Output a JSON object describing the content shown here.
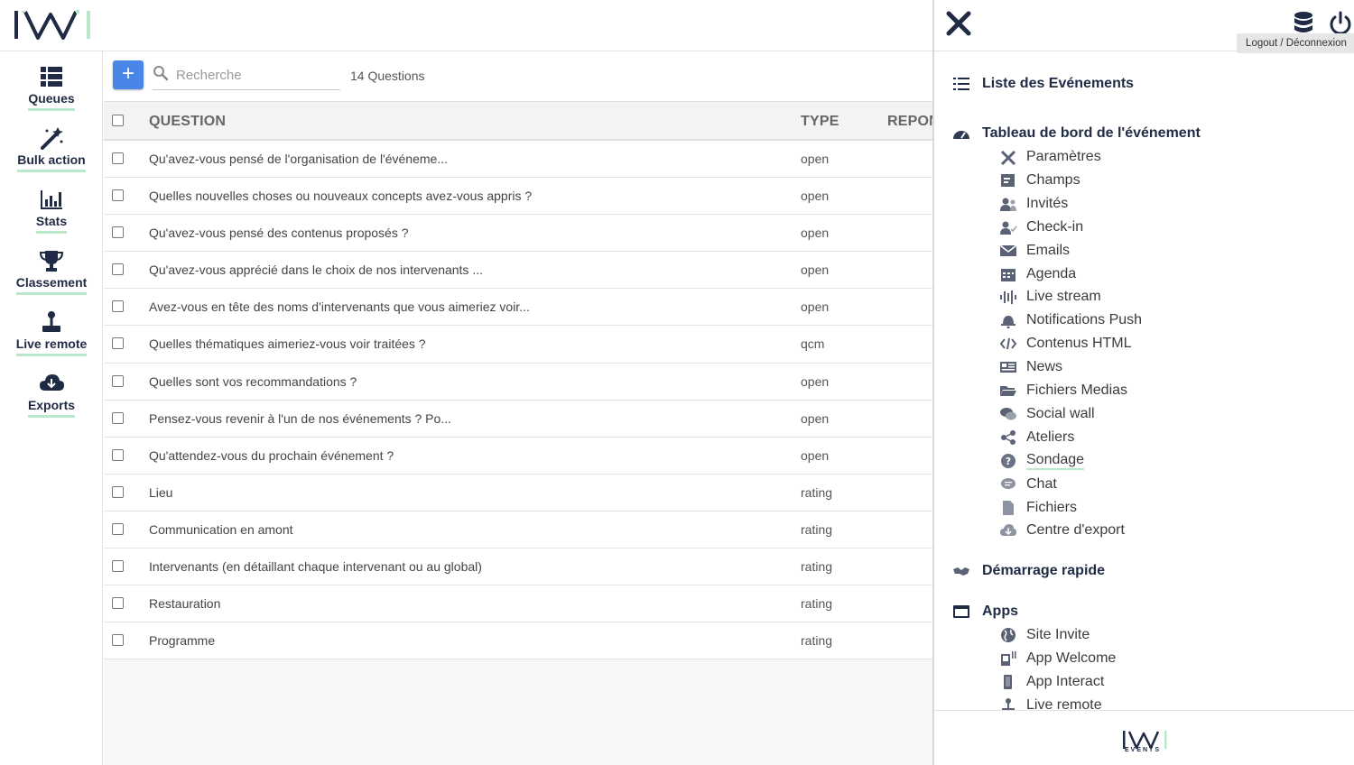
{
  "brand": {
    "accent": "#4a86e8",
    "underline": "#b9e8c9",
    "dark": "#1f2a44",
    "events_label": "EVENTS"
  },
  "leftnav": {
    "items": [
      {
        "label": "Queues",
        "icon": "queues-icon"
      },
      {
        "label": "Bulk action",
        "icon": "magic-wand-icon"
      },
      {
        "label": "Stats",
        "icon": "bar-chart-icon"
      },
      {
        "label": "Classement",
        "icon": "trophy-icon"
      },
      {
        "label": "Live remote",
        "icon": "joystick-icon"
      },
      {
        "label": "Exports",
        "icon": "cloud-download-icon"
      }
    ]
  },
  "toolbar": {
    "add_label": "+",
    "search_placeholder": "Recherche",
    "count_label": "14 Questions"
  },
  "table": {
    "headers": {
      "question": "QUESTION",
      "type": "TYPE",
      "repon": "REPON"
    },
    "rows": [
      {
        "question": "Qu'avez-vous pensé de l'organisation de l'événeme...",
        "type": "open"
      },
      {
        "question": "Quelles nouvelles choses ou nouveaux concepts avez-vous appris ?",
        "type": "open"
      },
      {
        "question": "Qu'avez-vous pensé des contenus proposés ?",
        "type": "open"
      },
      {
        "question": "Qu'avez-vous apprécié dans le choix de nos intervenants ...",
        "type": "open"
      },
      {
        "question": "Avez-vous en tête des noms d'intervenants que vous aimeriez voir...",
        "type": "open"
      },
      {
        "question": "Quelles thématiques aimeriez-vous voir traitées ?",
        "type": "qcm"
      },
      {
        "question": "Quelles sont vos recommandations ?",
        "type": "open"
      },
      {
        "question": "Pensez-vous revenir à l'un de nos événements ? Po...",
        "type": "open"
      },
      {
        "question": "Qu'attendez-vous du prochain événement ?",
        "type": "open"
      },
      {
        "question": "Lieu",
        "type": "rating"
      },
      {
        "question": "Communication en amont",
        "type": "rating"
      },
      {
        "question": "Intervenants (en détaillant chaque intervenant ou au global)",
        "type": "rating"
      },
      {
        "question": "Restauration",
        "type": "rating"
      },
      {
        "question": "Programme",
        "type": "rating"
      }
    ]
  },
  "rpanel": {
    "tooltip": "Logout / Déconnexion",
    "sections": {
      "list": "Liste des Evénements",
      "dashboard": "Tableau de bord de l'événement",
      "quickstart": "Démarrage rapide",
      "apps": "Apps"
    },
    "dashboard_items": [
      {
        "label": "Paramètres",
        "icon": "tools-icon"
      },
      {
        "label": "Champs",
        "icon": "form-fields-icon"
      },
      {
        "label": "Invités",
        "icon": "users-icon"
      },
      {
        "label": "Check-in",
        "icon": "user-check-icon"
      },
      {
        "label": "Emails",
        "icon": "envelope-icon"
      },
      {
        "label": "Agenda",
        "icon": "calendar-icon"
      },
      {
        "label": "Live stream",
        "icon": "soundwave-icon"
      },
      {
        "label": "Notifications Push",
        "icon": "bell-icon"
      },
      {
        "label": "Contenus HTML",
        "icon": "code-icon"
      },
      {
        "label": "News",
        "icon": "newspaper-icon"
      },
      {
        "label": "Fichiers Medias",
        "icon": "folder-open-icon"
      },
      {
        "label": "Social wall",
        "icon": "comments-icon"
      },
      {
        "label": "Ateliers",
        "icon": "share-nodes-icon"
      },
      {
        "label": "Sondage",
        "icon": "question-circle-icon"
      },
      {
        "label": "Chat",
        "icon": "chat-bubble-icon"
      },
      {
        "label": "Fichiers",
        "icon": "file-icon"
      },
      {
        "label": "Centre d'export",
        "icon": "cloud-download-icon"
      }
    ],
    "apps_items": [
      {
        "label": "Site Invite",
        "icon": "globe-icon"
      },
      {
        "label": "App Welcome",
        "icon": "kiosk-icon"
      },
      {
        "label": "App Interact",
        "icon": "mobile-icon"
      },
      {
        "label": "Live remote",
        "icon": "joystick-icon"
      }
    ]
  }
}
